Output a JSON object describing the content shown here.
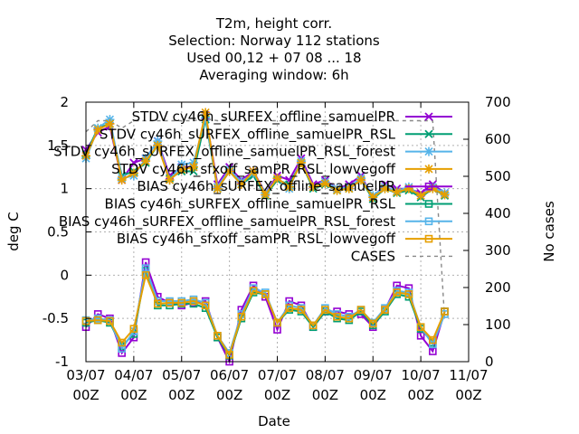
{
  "chart_data": {
    "type": "line",
    "title": [
      "T2m, height corr.",
      "Selection: Norway    112 stations",
      "Used  00,12  + 07 08 ... 18",
      "Averaging window:  6h"
    ],
    "xlabel": "Date",
    "ylabel": "deg C",
    "y2label": "No cases",
    "xticks": [
      {
        "day": 3,
        "label": [
          "03/07",
          "00Z"
        ]
      },
      {
        "day": 4,
        "label": [
          "04/07",
          "00Z"
        ]
      },
      {
        "day": 5,
        "label": [
          "05/07",
          "00Z"
        ]
      },
      {
        "day": 6,
        "label": [
          "06/07",
          "00Z"
        ]
      },
      {
        "day": 7,
        "label": [
          "07/07",
          "00Z"
        ]
      },
      {
        "day": 8,
        "label": [
          "08/07",
          "00Z"
        ]
      },
      {
        "day": 9,
        "label": [
          "09/07",
          "00Z"
        ]
      },
      {
        "day": 10,
        "label": [
          "10/07",
          "00Z"
        ]
      },
      {
        "day": 11,
        "label": [
          "11/07",
          "00Z"
        ]
      }
    ],
    "ylim": [
      -1,
      2
    ],
    "yticks": [
      "-1",
      "-0.5",
      "0",
      "0.5",
      "1",
      "1.5",
      "2"
    ],
    "y2lim": [
      0,
      700
    ],
    "y2ticks": [
      "0",
      "100",
      "200",
      "300",
      "400",
      "500",
      "600",
      "700"
    ],
    "grid": true,
    "legend_position": "top-right",
    "x": [
      3.0,
      3.25,
      3.5,
      3.75,
      4.0,
      4.25,
      4.5,
      4.75,
      5.0,
      5.25,
      5.5,
      5.75,
      6.0,
      6.25,
      6.5,
      6.75,
      7.0,
      7.25,
      7.5,
      7.75,
      8.0,
      8.25,
      8.5,
      8.75,
      9.0,
      9.25,
      9.5,
      9.75,
      10.0,
      10.25,
      10.5
    ],
    "series": [
      {
        "name": "STDV cy46h_sURFEX_offline_samuelPR",
        "color": "#9400d3",
        "marker": "x-cross",
        "axis": "y1",
        "values": [
          1.45,
          1.65,
          1.72,
          1.1,
          1.3,
          1.35,
          1.55,
          1.15,
          1.25,
          1.25,
          1.85,
          1.05,
          1.25,
          1.1,
          1.2,
          0.95,
          1.15,
          1.1,
          1.35,
          1.05,
          1.1,
          1.0,
          1.05,
          1.15,
          0.9,
          1.05,
          1.0,
          1.0,
          0.95,
          1.05,
          0.95
        ]
      },
      {
        "name": "STDV cy46h_sURFEX_offline_samuelPR_RSL",
        "color": "#009e73",
        "marker": "x-cross",
        "axis": "y1",
        "values": [
          1.4,
          1.7,
          1.75,
          1.15,
          1.2,
          1.3,
          1.5,
          1.12,
          1.2,
          1.2,
          1.8,
          1.0,
          1.2,
          1.05,
          1.15,
          0.92,
          1.1,
          1.05,
          1.3,
          1.0,
          1.05,
          0.98,
          1.0,
          1.1,
          0.88,
          1.0,
          0.95,
          0.98,
          0.9,
          1.0,
          0.92
        ]
      },
      {
        "name": "STDV cy46h_sURFEX_offline_samuelPR_RSL_forest",
        "color": "#56b4e9",
        "marker": "star",
        "axis": "y1",
        "values": [
          1.35,
          1.7,
          1.8,
          1.12,
          1.15,
          1.35,
          1.55,
          1.1,
          1.28,
          1.3,
          1.82,
          1.02,
          1.22,
          1.08,
          1.18,
          0.95,
          1.12,
          1.0,
          1.32,
          1.02,
          1.08,
          1.0,
          1.02,
          1.12,
          0.92,
          1.02,
          0.97,
          1.02,
          0.92,
          1.02,
          0.95
        ]
      },
      {
        "name": "STDV cy46h_sfxoff_samPR_RSL_lowvegoff",
        "color": "#e69f00",
        "marker": "star",
        "axis": "y1",
        "values": [
          1.38,
          1.68,
          1.75,
          1.1,
          1.18,
          1.32,
          1.5,
          1.1,
          1.22,
          1.25,
          1.88,
          1.0,
          1.2,
          1.05,
          1.2,
          0.93,
          1.12,
          1.02,
          1.3,
          1.02,
          1.06,
          0.98,
          1.0,
          1.1,
          0.9,
          1.0,
          0.96,
          1.0,
          0.92,
          1.0,
          0.93
        ]
      },
      {
        "name": "BIAS cy46h_sURFEX_offline_samuelPR",
        "color": "#9400d3",
        "marker": "open-square",
        "axis": "y1",
        "values": [
          -0.6,
          -0.45,
          -0.5,
          -0.9,
          -0.72,
          0.15,
          -0.25,
          -0.32,
          -0.35,
          -0.32,
          -0.3,
          -0.72,
          -1.0,
          -0.4,
          -0.12,
          -0.25,
          -0.63,
          -0.3,
          -0.35,
          -0.6,
          -0.42,
          -0.42,
          -0.45,
          -0.45,
          -0.6,
          -0.4,
          -0.12,
          -0.15,
          -0.7,
          -0.88,
          -0.42
        ]
      },
      {
        "name": "BIAS cy46h_sURFEX_offline_samuelPR_RSL",
        "color": "#009e73",
        "marker": "open-square",
        "axis": "y1",
        "values": [
          -0.55,
          -0.52,
          -0.55,
          -0.82,
          -0.68,
          0.05,
          -0.35,
          -0.35,
          -0.33,
          -0.33,
          -0.38,
          -0.72,
          -0.93,
          -0.5,
          -0.2,
          -0.22,
          -0.55,
          -0.4,
          -0.42,
          -0.6,
          -0.42,
          -0.5,
          -0.52,
          -0.42,
          -0.58,
          -0.42,
          -0.22,
          -0.25,
          -0.62,
          -0.78,
          -0.42
        ]
      },
      {
        "name": "BIAS cy46h_sURFEX_offline_samuelPR_RSL_forest",
        "color": "#56b4e9",
        "marker": "open-square",
        "axis": "y1",
        "values": [
          -0.52,
          -0.5,
          -0.52,
          -0.85,
          -0.65,
          0.08,
          -0.3,
          -0.3,
          -0.3,
          -0.28,
          -0.32,
          -0.7,
          -0.9,
          -0.45,
          -0.15,
          -0.2,
          -0.55,
          -0.35,
          -0.38,
          -0.58,
          -0.38,
          -0.45,
          -0.48,
          -0.4,
          -0.55,
          -0.38,
          -0.18,
          -0.2,
          -0.6,
          -0.8,
          -0.45
        ]
      },
      {
        "name": "BIAS cy46h_sfxoff_samPR_RSL_lowvegoff",
        "color": "#e69f00",
        "marker": "open-square",
        "axis": "y1",
        "values": [
          -0.53,
          -0.52,
          -0.53,
          -0.78,
          -0.62,
          0.0,
          -0.33,
          -0.32,
          -0.32,
          -0.3,
          -0.35,
          -0.7,
          -0.92,
          -0.48,
          -0.18,
          -0.22,
          -0.55,
          -0.38,
          -0.4,
          -0.58,
          -0.4,
          -0.48,
          -0.5,
          -0.4,
          -0.56,
          -0.4,
          -0.2,
          -0.22,
          -0.6,
          -0.75,
          -0.42
        ]
      },
      {
        "name": "CASES",
        "color": "#888888",
        "marker": "none",
        "dashed": true,
        "axis": "y2",
        "values": [
          620,
          650,
          650,
          630,
          650,
          650,
          650,
          650,
          650,
          650,
          655,
          650,
          655,
          650,
          650,
          650,
          650,
          650,
          650,
          650,
          650,
          650,
          650,
          650,
          650,
          650,
          650,
          650,
          650,
          650,
          110
        ]
      }
    ]
  }
}
